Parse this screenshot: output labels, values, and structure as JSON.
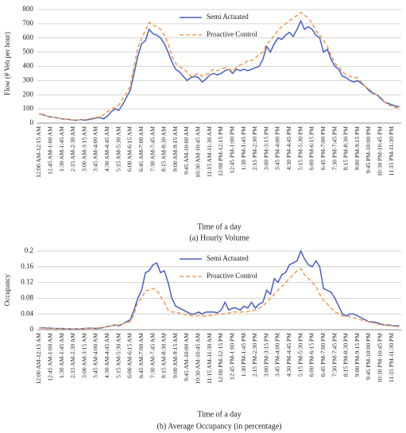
{
  "chart_data": [
    {
      "type": "line",
      "title": "(a) Hourly Volume",
      "x_label": "Time of a day",
      "y_label": "Flow (# Veh per hour)",
      "categories": [
        "12:00 AM-12:15 AM",
        null,
        null,
        "12:45 AM-1:00 AM",
        null,
        null,
        "1:30 AM-1:45 AM",
        null,
        null,
        "2:15 AM-2:30 AM",
        null,
        null,
        "3:00 AM-3:15 AM",
        null,
        null,
        "3:45 AM-4:00 AM",
        null,
        null,
        "4:30 AM-4:45 AM",
        null,
        null,
        "5:15 AM-5:30 AM",
        null,
        null,
        "6:00 AM-6:15 AM",
        null,
        null,
        "6:45 AM-7:00 AM",
        null,
        null,
        "7:30 AM-7:45 AM",
        null,
        null,
        "8:15 AM-8:30 AM",
        null,
        null,
        "9:00 AM-9:15 AM",
        null,
        null,
        "9:45 AM-10:00 AM",
        null,
        null,
        "10:30 AM-10:45 AM",
        null,
        null,
        "11:15 AM-11:30 AM",
        null,
        null,
        "12:00 PM-12:15 PM",
        null,
        null,
        "12:45 PM-1:00 PM",
        null,
        null,
        "1:30 PM-1:45 PM",
        null,
        null,
        "2:15 PM-2:30 PM",
        null,
        null,
        "3:00 PM-3:15 PM",
        null,
        null,
        "3:45 PM-4:00 PM",
        null,
        null,
        "4:30 PM-4:45 PM",
        null,
        null,
        "5:15 PM-5:30 PM",
        null,
        null,
        "6:00 PM-6:15 PM",
        null,
        null,
        "6:45 PM-7:00 PM",
        null,
        null,
        "7:30 PM-7:45 PM",
        null,
        null,
        "8:15 PM-8:30 PM",
        null,
        null,
        "9:00 PM-9:15 PM",
        null,
        null,
        "9:45 PM-10:00 PM",
        null,
        null,
        "10:30 PM-10:45 PM",
        null,
        null,
        "11:15 PM-11:30 PM",
        null,
        null
      ],
      "series": [
        {
          "name": "Semi Actuated",
          "color": "#4a5fc1",
          "dash": false,
          "values": [
            65,
            60,
            50,
            45,
            40,
            35,
            30,
            28,
            25,
            22,
            20,
            25,
            20,
            25,
            30,
            35,
            40,
            30,
            50,
            80,
            100,
            90,
            130,
            180,
            230,
            350,
            470,
            560,
            580,
            660,
            630,
            620,
            600,
            560,
            500,
            430,
            380,
            360,
            330,
            300,
            320,
            330,
            320,
            290,
            310,
            340,
            350,
            340,
            350,
            370,
            380,
            350,
            380,
            370,
            380,
            370,
            380,
            390,
            400,
            450,
            540,
            500,
            560,
            600,
            590,
            620,
            640,
            610,
            660,
            720,
            660,
            680,
            660,
            620,
            600,
            500,
            520,
            450,
            400,
            380,
            330,
            320,
            300,
            290,
            300,
            280,
            260,
            230,
            210,
            200,
            180,
            150,
            140,
            130,
            120,
            115
          ]
        },
        {
          "name": "Proactive Control",
          "color": "#f0a05a",
          "dash": true,
          "values": [
            70,
            60,
            50,
            45,
            40,
            35,
            30,
            28,
            25,
            22,
            20,
            25,
            25,
            30,
            35,
            40,
            45,
            60,
            80,
            100,
            110,
            130,
            170,
            210,
            260,
            400,
            530,
            600,
            650,
            710,
            690,
            680,
            660,
            620,
            560,
            470,
            420,
            400,
            380,
            360,
            330,
            340,
            350,
            330,
            340,
            360,
            380,
            370,
            380,
            390,
            380,
            370,
            390,
            410,
            420,
            440,
            440,
            460,
            480,
            500,
            560,
            580,
            620,
            650,
            680,
            700,
            720,
            740,
            760,
            780,
            760,
            740,
            700,
            650,
            620,
            580,
            540,
            480,
            420,
            400,
            360,
            340,
            330,
            320,
            320,
            290,
            260,
            240,
            220,
            200,
            170,
            150,
            130,
            120,
            110,
            100
          ]
        }
      ],
      "ylim": [
        0,
        800
      ],
      "yticks": [
        0,
        100,
        200,
        300,
        400,
        500,
        600,
        700,
        800
      ],
      "grid": true,
      "legend": "upper center"
    },
    {
      "type": "line",
      "title": "(b) Average Occupancy (in percentage)",
      "x_label": "Time of a day",
      "y_label": "Occupancy",
      "categories": [
        "12:00 AM-12:15 AM",
        null,
        null,
        "12:45 AM-1:00 AM",
        null,
        null,
        "1:30 AM-1:45 AM",
        null,
        null,
        "2:15 AM-2:30 AM",
        null,
        null,
        "3:00 AM-3:15 AM",
        null,
        null,
        "3:45 AM-4:00 AM",
        null,
        null,
        "4:30 AM-4:45 AM",
        null,
        null,
        "5:15 AM-5:30 AM",
        null,
        null,
        "6:00 AM-6:15 AM",
        null,
        null,
        "6:45 AM-7:00 AM",
        null,
        null,
        "7:30 AM-7:45 AM",
        null,
        null,
        "8:15 AM-8:30 AM",
        null,
        null,
        "9:00 AM-9:15 AM",
        null,
        null,
        "9:45 AM-10:00 AM",
        null,
        null,
        "10:30 AM-10:45 AM",
        null,
        null,
        "11:15 AM-11:30 AM",
        null,
        null,
        "12:00 PM-12:15 PM",
        null,
        null,
        "12:45 PM-1:00 PM",
        null,
        null,
        "1:30 PM-1:45 PM",
        null,
        null,
        "2:15 PM-2:30 PM",
        null,
        null,
        "3:00 PM-3:15 PM",
        null,
        null,
        "3:45 PM-4:00 PM",
        null,
        null,
        "4:30 PM-4:45 PM",
        null,
        null,
        "5:15 PM-5:30 PM",
        null,
        null,
        "6:00 PM-6:15 PM",
        null,
        null,
        "6:45 PM-7:00 PM",
        null,
        null,
        "7:30 PM-7:45 PM",
        null,
        null,
        "8:15 PM-8:30 PM",
        null,
        null,
        "9:00 PM-9:15 PM",
        null,
        null,
        "9:45 PM-10:00 PM",
        null,
        null,
        "10:30 PM-10:45 PM",
        null,
        null,
        "11:15 PM-11:30 PM",
        null,
        null
      ],
      "series": [
        {
          "name": "Semi Actuated",
          "color": "#4a5fc1",
          "dash": false,
          "values": [
            0.005,
            0.005,
            0.004,
            0.004,
            0.003,
            0.003,
            0.003,
            0.002,
            0.002,
            0.002,
            0.002,
            0.002,
            0.003,
            0.004,
            0.004,
            0.003,
            0.004,
            0.006,
            0.008,
            0.01,
            0.012,
            0.01,
            0.015,
            0.02,
            0.025,
            0.05,
            0.08,
            0.1,
            0.145,
            0.15,
            0.165,
            0.17,
            0.145,
            0.15,
            0.12,
            0.08,
            0.06,
            0.055,
            0.05,
            0.045,
            0.04,
            0.04,
            0.045,
            0.04,
            0.045,
            0.045,
            0.045,
            0.043,
            0.05,
            0.07,
            0.05,
            0.055,
            0.055,
            0.05,
            0.06,
            0.055,
            0.07,
            0.055,
            0.065,
            0.07,
            0.1,
            0.09,
            0.13,
            0.12,
            0.14,
            0.145,
            0.165,
            0.17,
            0.175,
            0.2,
            0.18,
            0.165,
            0.16,
            0.175,
            0.16,
            0.105,
            0.1,
            0.095,
            0.08,
            0.06,
            0.04,
            0.035,
            0.04,
            0.04,
            0.035,
            0.03,
            0.025,
            0.02,
            0.02,
            0.018,
            0.015,
            0.012,
            0.012,
            0.011,
            0.01,
            0.01
          ]
        },
        {
          "name": "Proactive Control",
          "color": "#f0a05a",
          "dash": true,
          "values": [
            0.004,
            0.004,
            0.003,
            0.003,
            0.003,
            0.002,
            0.002,
            0.002,
            0.002,
            0.002,
            0.002,
            0.002,
            0.003,
            0.003,
            0.004,
            0.004,
            0.005,
            0.006,
            0.008,
            0.01,
            0.012,
            0.012,
            0.015,
            0.018,
            0.02,
            0.04,
            0.07,
            0.08,
            0.1,
            0.1,
            0.105,
            0.1,
            0.085,
            0.07,
            0.05,
            0.045,
            0.045,
            0.042,
            0.04,
            0.038,
            0.036,
            0.035,
            0.036,
            0.035,
            0.035,
            0.036,
            0.038,
            0.04,
            0.04,
            0.04,
            0.042,
            0.045,
            0.045,
            0.045,
            0.045,
            0.046,
            0.048,
            0.05,
            0.055,
            0.06,
            0.07,
            0.08,
            0.09,
            0.1,
            0.11,
            0.12,
            0.13,
            0.14,
            0.15,
            0.155,
            0.14,
            0.13,
            0.12,
            0.11,
            0.09,
            0.075,
            0.065,
            0.055,
            0.045,
            0.04,
            0.035,
            0.035,
            0.033,
            0.03,
            0.028,
            0.025,
            0.022,
            0.02,
            0.018,
            0.015,
            0.013,
            0.012,
            0.01,
            0.01,
            0.008,
            0.008
          ]
        }
      ],
      "ylim": [
        0,
        0.2
      ],
      "yticks": [
        0,
        0.04,
        0.08,
        0.12,
        0.16,
        0.2
      ],
      "grid": true,
      "legend": "upper center"
    }
  ]
}
